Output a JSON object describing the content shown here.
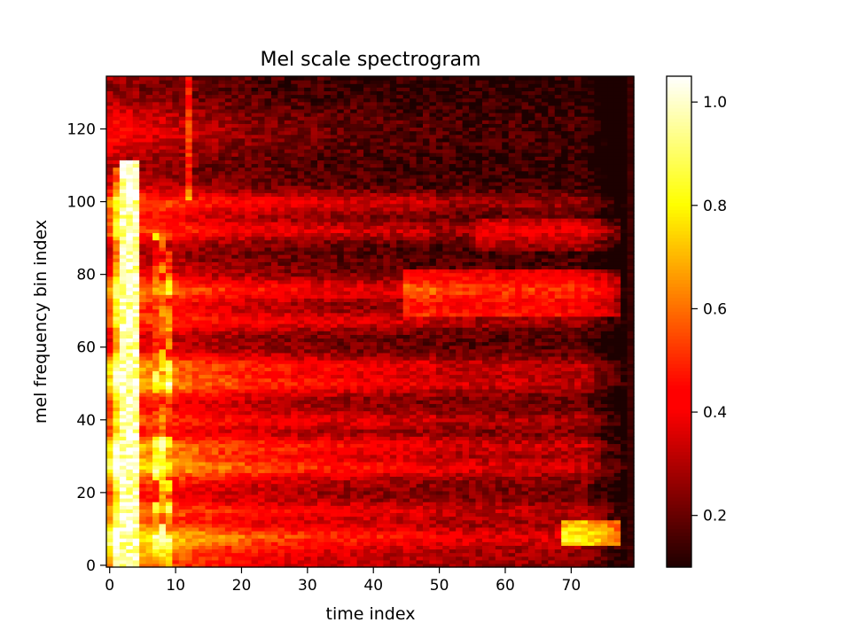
{
  "chart_data": {
    "type": "heatmap",
    "title": "Mel scale spectrogram",
    "xlabel": "time index",
    "ylabel": "mel frequency bin index",
    "xlim": [
      -0.5,
      79.5
    ],
    "ylim": [
      -0.5,
      134.5
    ],
    "x_ticks": [
      0,
      10,
      20,
      30,
      40,
      50,
      60,
      70
    ],
    "y_ticks": [
      0,
      20,
      40,
      60,
      80,
      100,
      120
    ],
    "n_time": 80,
    "n_mel": 135,
    "colormap": "hot",
    "colorbar": {
      "range": [
        0.1,
        1.05
      ],
      "ticks": [
        0.2,
        0.4,
        0.6,
        0.8,
        1.0
      ],
      "tick_labels": [
        "0.2",
        "0.4",
        "0.6",
        "0.8",
        "1.0"
      ]
    },
    "grid": false,
    "notes_features": {
      "onset_column_time": 3,
      "bright_column_range": [
        2,
        4
      ],
      "harmonic_band_bins": [
        8,
        15,
        27,
        33,
        40,
        50,
        55,
        67,
        76,
        92,
        100
      ],
      "late_blob": {
        "time": [
          69,
          77
        ],
        "bins": [
          6,
          12
        ],
        "value": 0.8
      },
      "right_edge_value": 0.12
    },
    "sample_values": [
      {
        "time": 3,
        "bin": 50,
        "value": 1.0
      },
      {
        "time": 9,
        "bin": 66,
        "value": 0.85
      },
      {
        "time": 20,
        "bin": 30,
        "value": 0.6
      },
      {
        "time": 40,
        "bin": 10,
        "value": 0.45
      },
      {
        "time": 55,
        "bin": 76,
        "value": 0.55
      },
      {
        "time": 71,
        "bin": 9,
        "value": 0.8
      },
      {
        "time": 79,
        "bin": 130,
        "value": 0.1
      }
    ]
  }
}
